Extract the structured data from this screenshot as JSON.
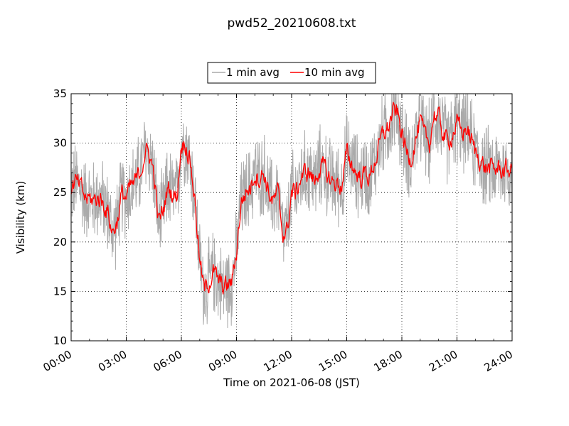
{
  "chart_data": {
    "type": "line",
    "title": "pwd52_20210608.txt",
    "xlabel": "Time on 2021-06-08 (JST)",
    "ylabel": "Visibility (km)",
    "xlim": [
      "00:00",
      "24:00"
    ],
    "ylim": [
      10,
      35
    ],
    "xticks": [
      "00:00",
      "03:00",
      "06:00",
      "09:00",
      "12:00",
      "15:00",
      "18:00",
      "21:00",
      "24:00"
    ],
    "yticks": [
      "10",
      "15",
      "20",
      "25",
      "30",
      "35"
    ],
    "grid": true,
    "legend": {
      "position": "top-center",
      "entries": [
        "1 min avg",
        "10 min avg"
      ]
    },
    "series": [
      {
        "name": "1 min avg",
        "color": "#aaaaaa",
        "style": "noisy",
        "noise_amplitude": 3.5,
        "x": [
          0,
          0.25,
          0.5,
          0.75,
          1,
          1.25,
          1.5,
          1.75,
          2,
          2.25,
          2.5,
          2.75,
          3,
          3.25,
          3.5,
          3.75,
          4,
          4.25,
          4.5,
          4.75,
          5,
          5.25,
          5.5,
          5.75,
          6,
          6.25,
          6.5,
          6.75,
          7,
          7.25,
          7.5,
          7.75,
          8,
          8.25,
          8.5,
          8.75,
          9,
          9.25,
          9.5,
          9.75,
          10,
          10.25,
          10.5,
          10.75,
          11,
          11.25,
          11.5,
          11.75,
          12,
          12.25,
          12.5,
          12.75,
          13,
          13.25,
          13.5,
          13.75,
          14,
          14.25,
          14.5,
          14.75,
          15,
          15.25,
          15.5,
          15.75,
          16,
          16.25,
          16.5,
          16.75,
          17,
          17.25,
          17.5,
          17.75,
          18,
          18.25,
          18.5,
          18.75,
          19,
          19.25,
          19.5,
          19.75,
          20,
          20.25,
          20.5,
          20.75,
          21,
          21.25,
          21.5,
          21.75,
          22,
          22.25,
          22.5,
          22.75,
          23,
          23.25,
          23.5,
          23.75,
          24
        ],
        "values": [
          25.5,
          26,
          25.5,
          24.5,
          24.3,
          24.2,
          24.5,
          24,
          23,
          21,
          22,
          24.8,
          24.5,
          25.5,
          26,
          27,
          29,
          29,
          27,
          22,
          23,
          25.5,
          25,
          24.5,
          30,
          30,
          28,
          24,
          18,
          15,
          16,
          17,
          16,
          15.5,
          15.5,
          16,
          19,
          24,
          25,
          25.5,
          27,
          26.5,
          27,
          25,
          24,
          25,
          21,
          21,
          25,
          25,
          26.5,
          27,
          27,
          26,
          27.5,
          27.5,
          26.5,
          26,
          26,
          25.5,
          29,
          28,
          27,
          26.5,
          27,
          26.5,
          28,
          29.5,
          31,
          31.5,
          33,
          33,
          31,
          29,
          28.5,
          30.5,
          32,
          30.5,
          30,
          33,
          32.5,
          31,
          30,
          31,
          32,
          31,
          31.5,
          30.5,
          29,
          28.5,
          27.5,
          27.5,
          27.3,
          27.5,
          27.2,
          27.3,
          27.3
        ]
      },
      {
        "name": "10 min avg",
        "color": "#ff0000",
        "style": "smooth",
        "noise_amplitude": 0.8,
        "x": [
          0,
          0.25,
          0.5,
          0.75,
          1,
          1.25,
          1.5,
          1.75,
          2,
          2.25,
          2.5,
          2.75,
          3,
          3.25,
          3.5,
          3.75,
          4,
          4.25,
          4.5,
          4.75,
          5,
          5.25,
          5.5,
          5.75,
          6,
          6.25,
          6.5,
          6.75,
          7,
          7.25,
          7.5,
          7.75,
          8,
          8.25,
          8.5,
          8.75,
          9,
          9.25,
          9.5,
          9.75,
          10,
          10.25,
          10.5,
          10.75,
          11,
          11.25,
          11.5,
          11.75,
          12,
          12.25,
          12.5,
          12.75,
          13,
          13.25,
          13.5,
          13.75,
          14,
          14.25,
          14.5,
          14.75,
          15,
          15.25,
          15.5,
          15.75,
          16,
          16.25,
          16.5,
          16.75,
          17,
          17.25,
          17.5,
          17.75,
          18,
          18.25,
          18.5,
          18.75,
          19,
          19.25,
          19.5,
          19.75,
          20,
          20.25,
          20.5,
          20.75,
          21,
          21.25,
          21.5,
          21.75,
          22,
          22.25,
          22.5,
          22.75,
          23,
          23.25,
          23.5,
          23.75,
          24
        ],
        "values": [
          25.5,
          26,
          25.5,
          24.5,
          24.3,
          24.2,
          24.5,
          24,
          23,
          21,
          22,
          24.8,
          24.5,
          25.5,
          26,
          27,
          29,
          29,
          27,
          22,
          23,
          25.5,
          25,
          24.5,
          30,
          30,
          28,
          24,
          18,
          15,
          16,
          17,
          16,
          15.5,
          15.5,
          16,
          19,
          24,
          25,
          25.5,
          27,
          26.5,
          27,
          25,
          24,
          25,
          21,
          21,
          25,
          25,
          26.5,
          27,
          27,
          26,
          27.5,
          27.5,
          26.5,
          26,
          26,
          25.5,
          29,
          28,
          27,
          26.5,
          27,
          26.5,
          28,
          29.5,
          31,
          31.5,
          33,
          33,
          31,
          29,
          28.5,
          30.5,
          32,
          30.5,
          30,
          33,
          32.5,
          31,
          30,
          31,
          32,
          31,
          31.5,
          30.5,
          29,
          28.5,
          27.5,
          27.5,
          27.3,
          27.5,
          27.2,
          27.3,
          27.3
        ]
      }
    ]
  }
}
